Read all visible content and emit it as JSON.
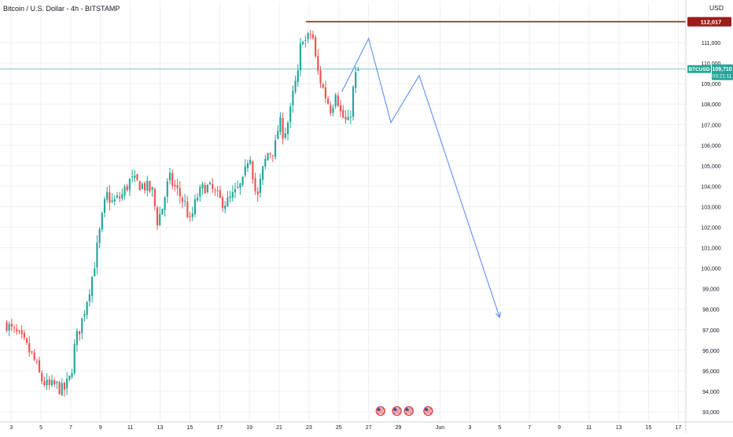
{
  "header": {
    "title": "Bitcoin / U.S. Dollar - 4h - BITSTAMP"
  },
  "axis": {
    "currency": "USD",
    "resistance_label": "112,017",
    "symbol_label": "BTCUSD",
    "price_label": "109,710",
    "countdown_label": "03:21:11"
  },
  "colors": {
    "up": "#26a69a",
    "down": "#ef5350",
    "grid": "#eef0f3",
    "resistance": "#9c1c1c",
    "projection": "#5b8ff9",
    "price_line": "#26a69a",
    "event_icon": "#e3464f"
  },
  "chart_data": {
    "type": "candlestick",
    "title": "Bitcoin / U.S. Dollar - 4h - BITSTAMP",
    "ylabel": "USD",
    "ylim": [
      92500,
      113000
    ],
    "y_ticks": [
      93000,
      94000,
      95000,
      96000,
      97000,
      98000,
      99000,
      100000,
      101000,
      102000,
      103000,
      104000,
      105000,
      106000,
      107000,
      108000,
      109000,
      110000,
      111000
    ],
    "x_ticks": [
      {
        "label": "3",
        "t": 3
      },
      {
        "label": "5",
        "t": 5
      },
      {
        "label": "7",
        "t": 7
      },
      {
        "label": "9",
        "t": 9
      },
      {
        "label": "11",
        "t": 11
      },
      {
        "label": "13",
        "t": 13
      },
      {
        "label": "15",
        "t": 15
      },
      {
        "label": "17",
        "t": 17
      },
      {
        "label": "19",
        "t": 19
      },
      {
        "label": "21",
        "t": 21
      },
      {
        "label": "23",
        "t": 23
      },
      {
        "label": "25",
        "t": 25
      },
      {
        "label": "27",
        "t": 27
      },
      {
        "label": "29",
        "t": 29
      },
      {
        "label": "Jun",
        "t": 31.8
      },
      {
        "label": "3",
        "t": 33.8
      },
      {
        "label": "5",
        "t": 35.8
      },
      {
        "label": "7",
        "t": 37.8
      },
      {
        "label": "9",
        "t": 39.8
      },
      {
        "label": "11",
        "t": 41.8
      },
      {
        "label": "13",
        "t": 43.8
      },
      {
        "label": "15",
        "t": 45.8
      },
      {
        "label": "17",
        "t": 47.8
      }
    ],
    "candle_anchors": [
      [
        2.7,
        97300
      ],
      [
        3.0,
        97000
      ],
      [
        3.5,
        96700
      ],
      [
        4.0,
        96200
      ],
      [
        4.5,
        95600
      ],
      [
        5.0,
        94600
      ],
      [
        5.5,
        94200
      ],
      [
        6.0,
        94300
      ],
      [
        6.5,
        94000
      ],
      [
        7.0,
        94700
      ],
      [
        7.3,
        96400
      ],
      [
        7.7,
        97300
      ],
      [
        8.0,
        98200
      ],
      [
        8.5,
        99800
      ],
      [
        9.0,
        102000
      ],
      [
        9.4,
        103600
      ],
      [
        9.8,
        103200
      ],
      [
        10.4,
        103500
      ],
      [
        11.0,
        104300
      ],
      [
        11.6,
        104100
      ],
      [
        12.0,
        104000
      ],
      [
        12.5,
        103700
      ],
      [
        12.8,
        102300
      ],
      [
        13.1,
        102800
      ],
      [
        13.6,
        104400
      ],
      [
        14.2,
        103700
      ],
      [
        14.7,
        103100
      ],
      [
        15.0,
        102200
      ],
      [
        15.5,
        103500
      ],
      [
        16.0,
        104000
      ],
      [
        16.5,
        103800
      ],
      [
        17.0,
        103300
      ],
      [
        17.5,
        103200
      ],
      [
        18.0,
        103600
      ],
      [
        18.6,
        104200
      ],
      [
        19.0,
        105800
      ],
      [
        19.5,
        103200
      ],
      [
        19.8,
        104500
      ],
      [
        20.2,
        105600
      ],
      [
        20.7,
        105800
      ],
      [
        21.0,
        107200
      ],
      [
        21.3,
        106500
      ],
      [
        21.7,
        107400
      ],
      [
        22.0,
        108800
      ],
      [
        22.3,
        109500
      ],
      [
        22.5,
        111500
      ],
      [
        22.8,
        111000
      ],
      [
        23.2,
        111600
      ],
      [
        23.5,
        109800
      ],
      [
        24.0,
        108600
      ],
      [
        24.5,
        107700
      ],
      [
        24.8,
        108800
      ],
      [
        25.1,
        107600
      ],
      [
        25.4,
        107200
      ],
      [
        25.7,
        107000
      ],
      [
        25.9,
        108400
      ],
      [
        26.1,
        109300
      ],
      [
        26.3,
        109700
      ]
    ],
    "candles_count": 141,
    "last_price": 109710,
    "resistance": 112017,
    "projection_path": [
      {
        "t": 25.2,
        "v": 108600
      },
      {
        "t": 27.0,
        "v": 111200
      },
      {
        "t": 28.5,
        "v": 107100
      },
      {
        "t": 30.4,
        "v": 109400
      },
      {
        "t": 35.8,
        "v": 97600
      }
    ],
    "event_icons_t": [
      27.8,
      28.9,
      29.7,
      31.0
    ]
  }
}
